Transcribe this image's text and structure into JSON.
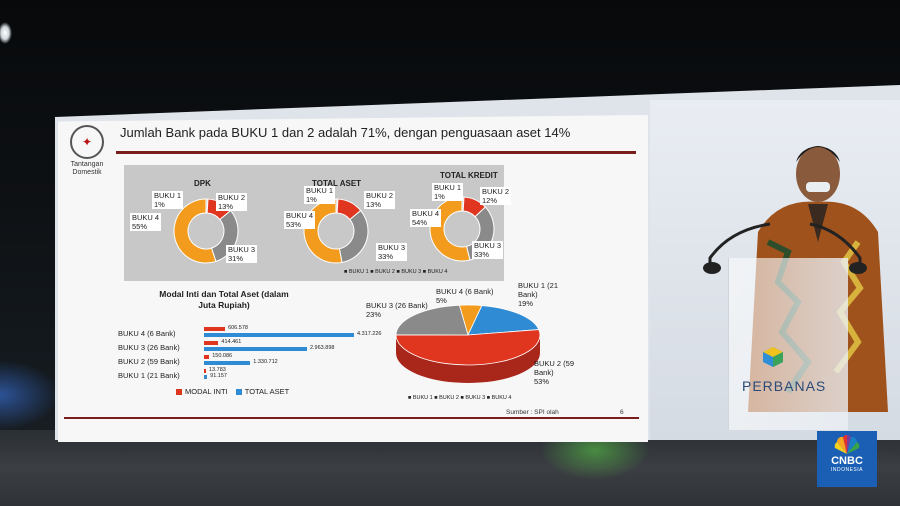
{
  "slide": {
    "logo_caption": "Tantangan Domestik",
    "title": "Jumlah Bank pada BUKU 1 dan 2  adalah 71%, dengan penguasaan aset 14%",
    "source": "Sumber : SPI olah",
    "page_number": "6"
  },
  "donut_legend": "■ BUKU 1  ■ BUKU 2  ■ BUKU 3  ■ BUKU 4",
  "colors": {
    "buku1": "#c9c9c9",
    "buku2": "#e0351f",
    "buku3": "#8a8a8a",
    "buku4": "#f29b1d",
    "modal_inti": "#e0351f",
    "total_aset": "#2f8bd3"
  },
  "chart_data": [
    {
      "type": "pie",
      "title": "DPK",
      "categories": [
        "BUKU 1",
        "BUKU 2",
        "BUKU 3",
        "BUKU 4"
      ],
      "values": [
        1,
        13,
        31,
        55
      ],
      "labels": [
        "BUKU 1\n1%",
        "BUKU 2\n13%",
        "BUKU 3\n31%",
        "BUKU 4\n55%"
      ]
    },
    {
      "type": "pie",
      "title": "TOTAL ASET",
      "categories": [
        "BUKU 1",
        "BUKU 2",
        "BUKU 3",
        "BUKU 4"
      ],
      "values": [
        1,
        13,
        33,
        53
      ],
      "labels": [
        "BUKU 1\n1%",
        "BUKU 2\n13%",
        "BUKU 3\n33%",
        "BUKU 4\n53%"
      ]
    },
    {
      "type": "pie",
      "title": "TOTAL KREDIT",
      "categories": [
        "BUKU 1",
        "BUKU 2",
        "BUKU 3",
        "BUKU 4"
      ],
      "values": [
        1,
        12,
        33,
        54
      ],
      "labels": [
        "BUKU 1\n1%",
        "BUKU 2\n12%",
        "BUKU 3\n33%",
        "BUKU 4\n54%"
      ]
    },
    {
      "type": "bar",
      "title": "Modal Inti dan Total Aset (dalam Juta Rupiah)",
      "categories": [
        "BUKU 4 (6 Bank)",
        "BUKU 3 (26 Bank)",
        "BUKU 2 (59 Bank)",
        "BUKU 1 (21 Bank)"
      ],
      "series": [
        {
          "name": "MODAL INTI",
          "values": [
            606578,
            414461,
            150086,
            13783
          ],
          "value_labels": [
            "606.578",
            "414.461",
            "150.086",
            "13.783"
          ]
        },
        {
          "name": "TOTAL ASET",
          "values": [
            4317226,
            2963898,
            1330712,
            91157
          ],
          "value_labels": [
            "4.317.226",
            "2.963.898",
            "1.330.712",
            "91.157"
          ]
        }
      ]
    },
    {
      "type": "pie",
      "title": "",
      "categories": [
        "BUKU 1",
        "BUKU 2",
        "BUKU 3",
        "BUKU 4"
      ],
      "values": [
        19,
        53,
        23,
        5
      ],
      "labels": [
        "BUKU 1 (21\nBank)\n19%",
        "BUKU 2 (59\nBank)\n53%",
        "BUKU 3 (26 Bank)\n23%",
        "BUKU 4 (6 Bank)\n5%"
      ],
      "legend": "■ BUKU 1  ■ BUKU 2  ■ BUKU 3  ■ BUKU 4"
    }
  ],
  "perbanas": {
    "name": "PERBANAS"
  },
  "cnbc": {
    "name": "CNBC",
    "region": "INDONESIA"
  }
}
